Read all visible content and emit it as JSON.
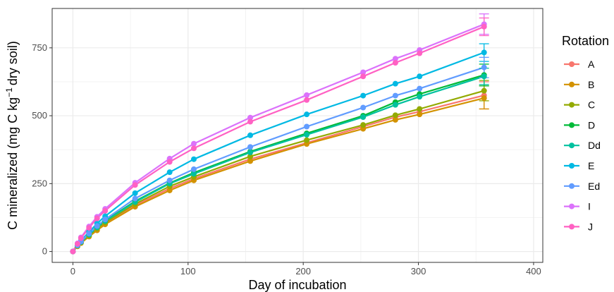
{
  "chart_data": {
    "type": "line",
    "xlabel": "Day of incubation",
    "ylabel_main": "C mineralized (mg C kg",
    "ylabel_sup": "−1",
    "ylabel_end": "dry soil)",
    "xlim": [
      -18,
      408
    ],
    "ylim": [
      -40,
      895
    ],
    "xticks": [
      0,
      100,
      200,
      300,
      400
    ],
    "yticks": [
      0,
      250,
      500,
      750
    ],
    "grid": true,
    "legend_title": "Rotation",
    "legend_position": "right",
    "x": [
      0,
      4,
      7,
      14,
      21,
      28,
      54,
      84,
      105,
      154,
      203,
      252,
      280,
      301,
      357
    ],
    "series": [
      {
        "name": "A",
        "color": "#F8766D",
        "values": [
          0,
          20,
          32,
          57,
          82,
          103,
          170,
          232,
          268,
          340,
          400,
          460,
          495,
          515,
          575
        ]
      },
      {
        "name": "B",
        "color": "#D39200",
        "values": [
          0,
          19,
          31,
          55,
          78,
          100,
          165,
          225,
          262,
          333,
          396,
          452,
          485,
          505,
          565
        ]
      },
      {
        "name": "C",
        "color": "#93AA00",
        "values": [
          0,
          21,
          34,
          59,
          85,
          107,
          175,
          240,
          275,
          350,
          410,
          466,
          502,
          525,
          592
        ]
      },
      {
        "name": "D",
        "color": "#00BA38",
        "values": [
          0,
          22,
          36,
          63,
          90,
          113,
          185,
          252,
          290,
          368,
          435,
          500,
          550,
          580,
          650
        ]
      },
      {
        "name": "Dd",
        "color": "#00C19F",
        "values": [
          0,
          22,
          35,
          62,
          89,
          112,
          182,
          250,
          286,
          365,
          430,
          495,
          540,
          570,
          645
        ]
      },
      {
        "name": "E",
        "color": "#00B9E3",
        "values": [
          0,
          24,
          40,
          72,
          103,
          130,
          215,
          292,
          340,
          428,
          505,
          574,
          618,
          645,
          733
        ]
      },
      {
        "name": "Ed",
        "color": "#619CFF",
        "values": [
          0,
          23,
          37,
          66,
          94,
          118,
          195,
          262,
          303,
          385,
          460,
          530,
          574,
          600,
          678
        ]
      },
      {
        "name": "I",
        "color": "#DB72FB",
        "values": [
          0,
          30,
          52,
          92,
          128,
          157,
          253,
          342,
          397,
          493,
          576,
          660,
          710,
          742,
          837
        ]
      },
      {
        "name": "J",
        "color": "#FF61C3",
        "values": [
          0,
          28,
          49,
          87,
          122,
          150,
          245,
          330,
          380,
          478,
          558,
          645,
          695,
          730,
          828
        ]
      }
    ],
    "error_bars_at_last_x": [
      {
        "series": "A",
        "low": 525,
        "high": 625
      },
      {
        "series": "B",
        "low": 525,
        "high": 610
      },
      {
        "series": "C",
        "low": 555,
        "high": 630
      },
      {
        "series": "D",
        "low": 610,
        "high": 690
      },
      {
        "series": "Dd",
        "low": 615,
        "high": 675
      },
      {
        "series": "E",
        "low": 700,
        "high": 765
      },
      {
        "series": "Ed",
        "low": 640,
        "high": 715
      },
      {
        "series": "I",
        "low": 800,
        "high": 875
      },
      {
        "series": "J",
        "low": 795,
        "high": 860
      }
    ]
  }
}
